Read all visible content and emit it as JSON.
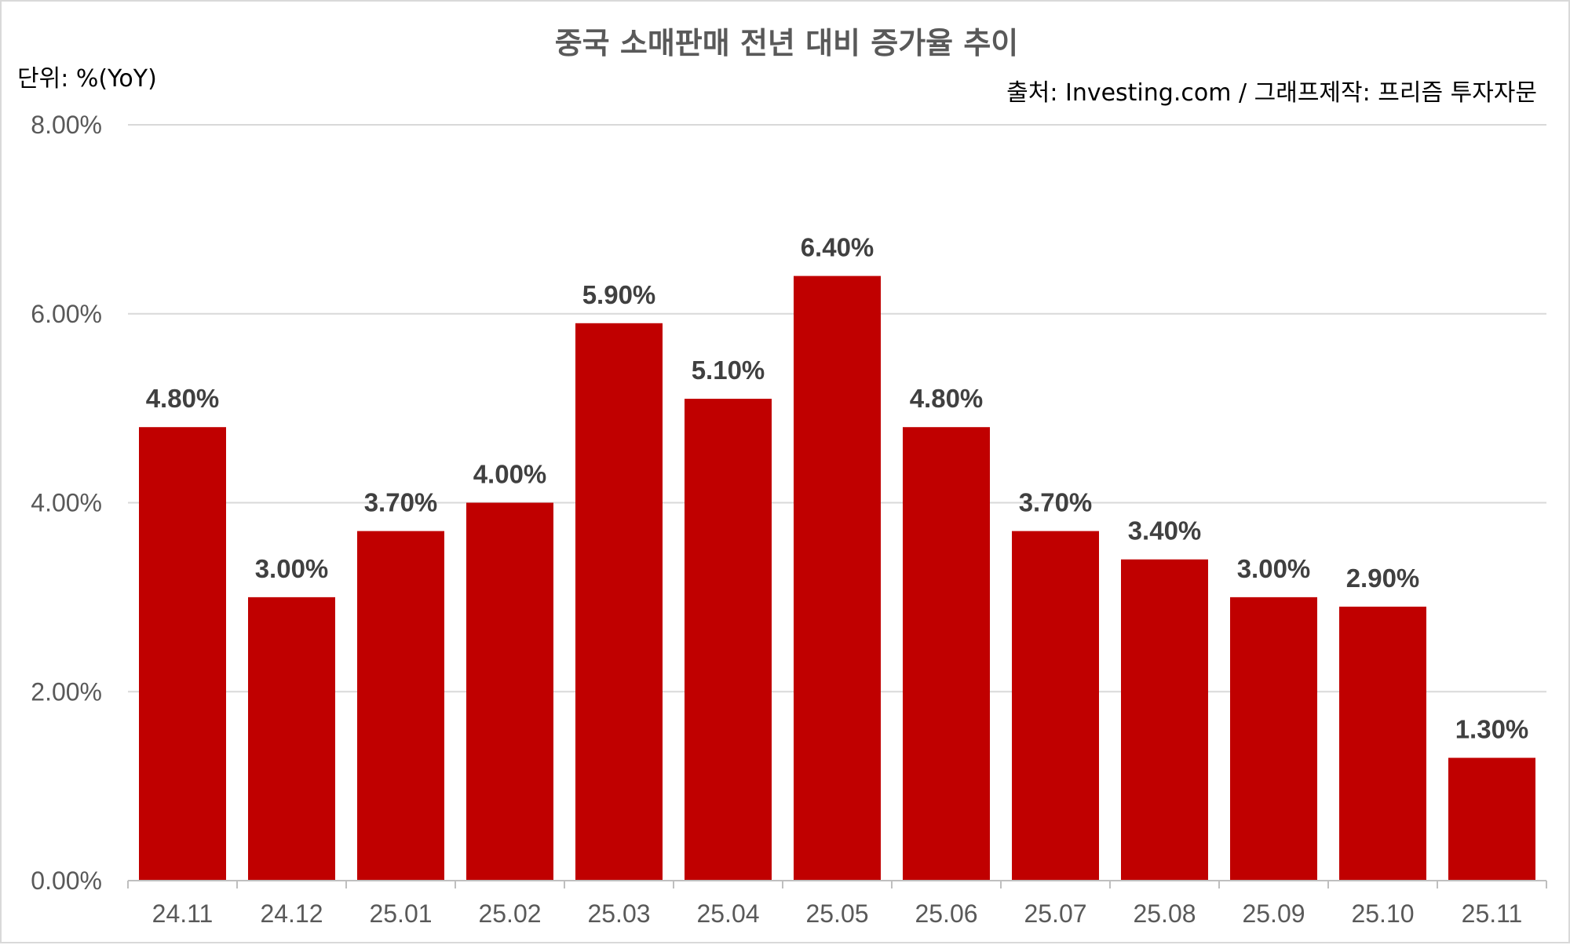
{
  "chart_data": {
    "type": "bar",
    "title": "중국 소매판매 전년 대비 증가율 추이",
    "unit_label": "단위: %(YoY)",
    "source": "출처: Investing.com  / 그래프제작: 프리즘 투자자문",
    "xlabel": "",
    "ylabel": "",
    "categories": [
      "24.11",
      "24.12",
      "25.01",
      "25.02",
      "25.03",
      "25.04",
      "25.05",
      "25.06",
      "25.07",
      "25.08",
      "25.09",
      "25.10",
      "25.11"
    ],
    "values": [
      4.8,
      3.0,
      3.7,
      4.0,
      5.9,
      5.1,
      6.4,
      4.8,
      3.7,
      3.4,
      3.0,
      2.9,
      1.3
    ],
    "data_labels": [
      "4.80%",
      "3.00%",
      "3.70%",
      "4.00%",
      "5.90%",
      "5.10%",
      "6.40%",
      "4.80%",
      "3.70%",
      "3.40%",
      "3.00%",
      "2.90%",
      "1.30%"
    ],
    "ylim": [
      0,
      8
    ],
    "y_ticks": [
      0,
      2,
      4,
      6,
      8
    ],
    "y_tick_labels": [
      "0.00%",
      "2.00%",
      "4.00%",
      "6.00%",
      "8.00%"
    ],
    "grid": true,
    "legend": "none",
    "bar_color": "#c00000"
  }
}
